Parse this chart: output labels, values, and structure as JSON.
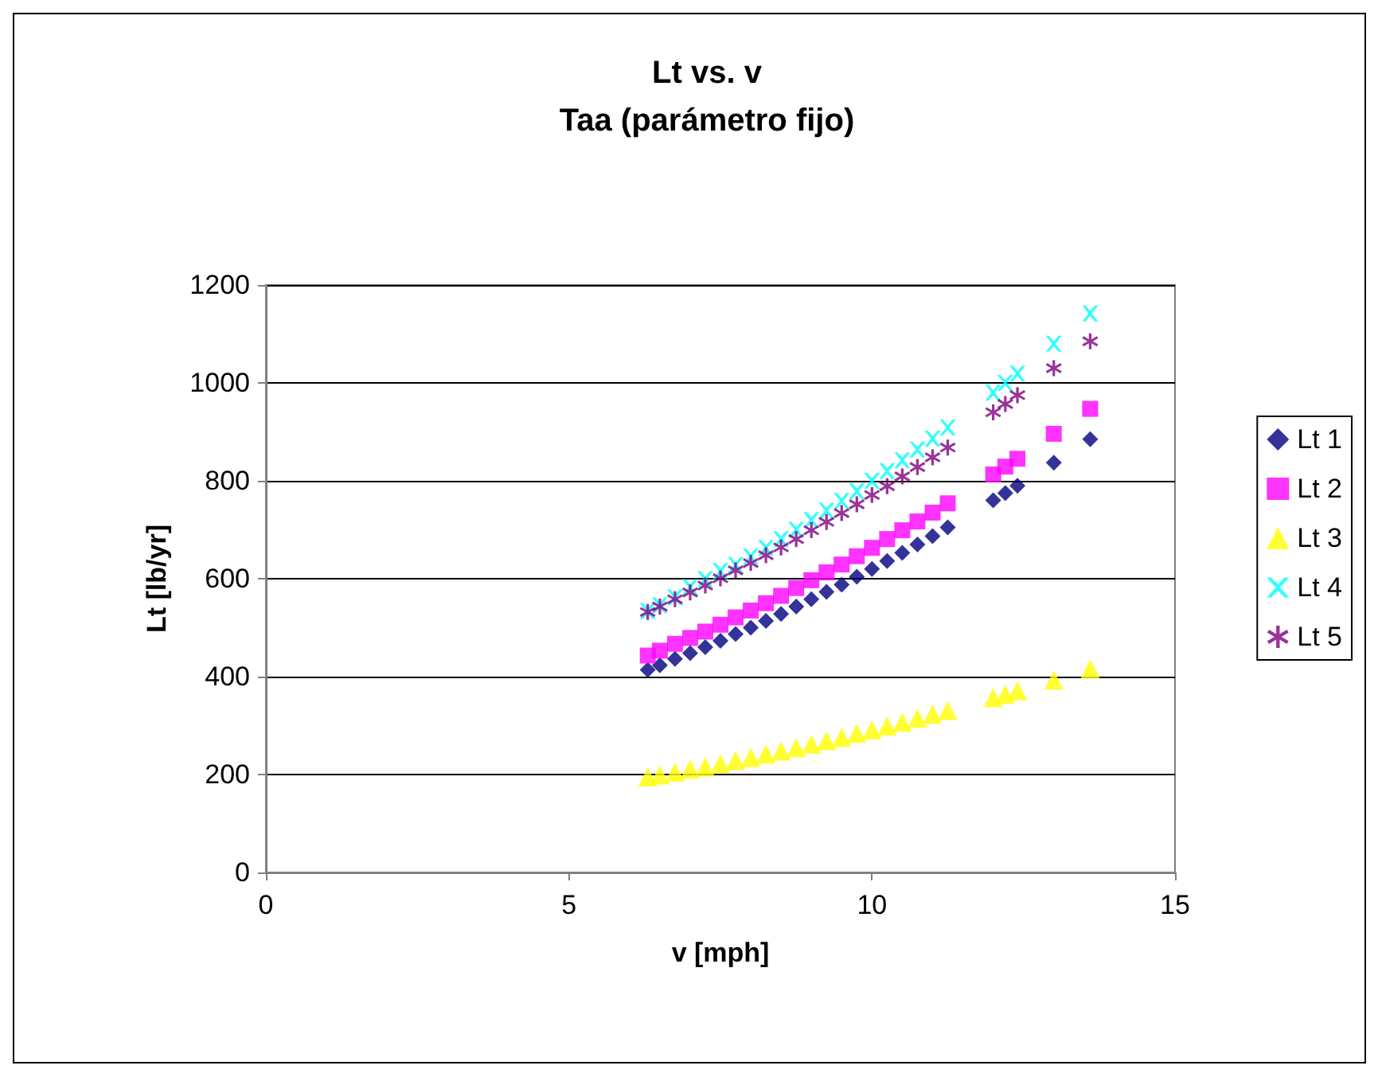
{
  "chart_data": {
    "type": "scatter",
    "title": "Lt vs. v",
    "subtitle": "Taa (parámetro fijo)",
    "xlabel": "v [mph]",
    "ylabel": "Lt [lb/yr]",
    "x": [
      6.3,
      6.5,
      6.75,
      7,
      7.25,
      7.5,
      7.75,
      8,
      8.25,
      8.5,
      8.75,
      9,
      9.25,
      9.5,
      9.75,
      10,
      10.25,
      10.5,
      10.75,
      11,
      11.25,
      12,
      12.2,
      12.4,
      13,
      13.6
    ],
    "series": [
      {
        "name": "Lt 1",
        "color": "#000080",
        "marker": "diamond",
        "values": [
          414,
          423,
          436,
          448,
          460,
          473,
          487,
          500,
          514,
          528,
          543,
          558,
          573,
          588,
          604,
          620,
          636,
          653,
          670,
          687,
          705,
          760,
          775,
          790,
          837,
          885
        ]
      },
      {
        "name": "Lt 2",
        "color": "#ff00ff",
        "marker": "square",
        "values": [
          443,
          453,
          467,
          479,
          492,
          506,
          521,
          535,
          550,
          565,
          581,
          597,
          613,
          629,
          646,
          663,
          681,
          699,
          717,
          735,
          754,
          813,
          829,
          845,
          896,
          947
        ]
      },
      {
        "name": "Lt 3",
        "color": "#ffff00",
        "marker": "triangle",
        "values": [
          195,
          199,
          205,
          211,
          216,
          222,
          229,
          235,
          242,
          248,
          255,
          262,
          269,
          276,
          284,
          291,
          299,
          307,
          315,
          323,
          331,
          357,
          364,
          371,
          393,
          416
        ]
      },
      {
        "name": "Lt 4",
        "color": "#00ffff",
        "marker": "cross",
        "values": [
          534,
          546,
          562,
          583,
          599,
          616,
          628,
          645,
          663,
          681,
          700,
          720,
          739,
          759,
          779,
          800,
          820,
          842,
          864,
          886,
          909,
          980,
          1000,
          1019,
          1080,
          1142
        ]
      },
      {
        "name": "Lt 5",
        "color": "#800080",
        "marker": "star",
        "values": [
          532,
          543,
          558,
          572,
          586,
          601,
          617,
          632,
          648,
          664,
          681,
          699,
          716,
          734,
          752,
          771,
          789,
          809,
          828,
          848,
          868,
          940,
          957,
          975,
          1030,
          1085
        ]
      }
    ],
    "xlim": [
      0,
      15
    ],
    "xticks": [
      0,
      5,
      10,
      15
    ],
    "ylim": [
      0,
      1200
    ],
    "yticks": [
      0,
      200,
      400,
      600,
      800,
      1000,
      1200
    ],
    "grid": "y",
    "legend": "right"
  }
}
